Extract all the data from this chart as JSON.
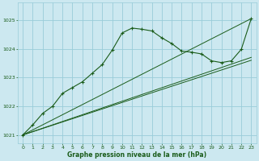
{
  "title": "Graphe pression niveau de la mer (hPa)",
  "background_color": "#cce8f0",
  "grid_color": "#99ccd9",
  "line_color": "#1a5c1a",
  "marker_color": "#1a5c1a",
  "xlim": [
    -0.5,
    23.5
  ],
  "ylim": [
    1020.7,
    1025.6
  ],
  "yticks": [
    1021,
    1022,
    1023,
    1024,
    1025
  ],
  "xticks": [
    0,
    1,
    2,
    3,
    4,
    5,
    6,
    7,
    8,
    9,
    10,
    11,
    12,
    13,
    14,
    15,
    16,
    17,
    18,
    19,
    20,
    21,
    22,
    23
  ],
  "series_main": {
    "x": [
      0,
      1,
      2,
      3,
      4,
      5,
      6,
      7,
      8,
      9,
      10,
      11,
      12,
      13,
      14,
      15,
      16,
      17,
      18,
      19,
      20,
      21,
      22,
      23
    ],
    "y": [
      1021.0,
      1021.35,
      1021.75,
      1022.0,
      1022.45,
      1022.65,
      1022.85,
      1023.15,
      1023.45,
      1023.95,
      1024.55,
      1024.72,
      1024.68,
      1024.62,
      1024.38,
      1024.18,
      1023.92,
      1023.88,
      1023.82,
      1023.58,
      1023.52,
      1023.58,
      1023.98,
      1025.05
    ]
  },
  "series_line1": {
    "x": [
      0,
      23
    ],
    "y": [
      1021.0,
      1023.6
    ]
  },
  "series_line2": {
    "x": [
      0,
      23
    ],
    "y": [
      1021.0,
      1023.7
    ]
  },
  "series_line3": {
    "x": [
      0,
      23
    ],
    "y": [
      1021.0,
      1025.05
    ]
  }
}
